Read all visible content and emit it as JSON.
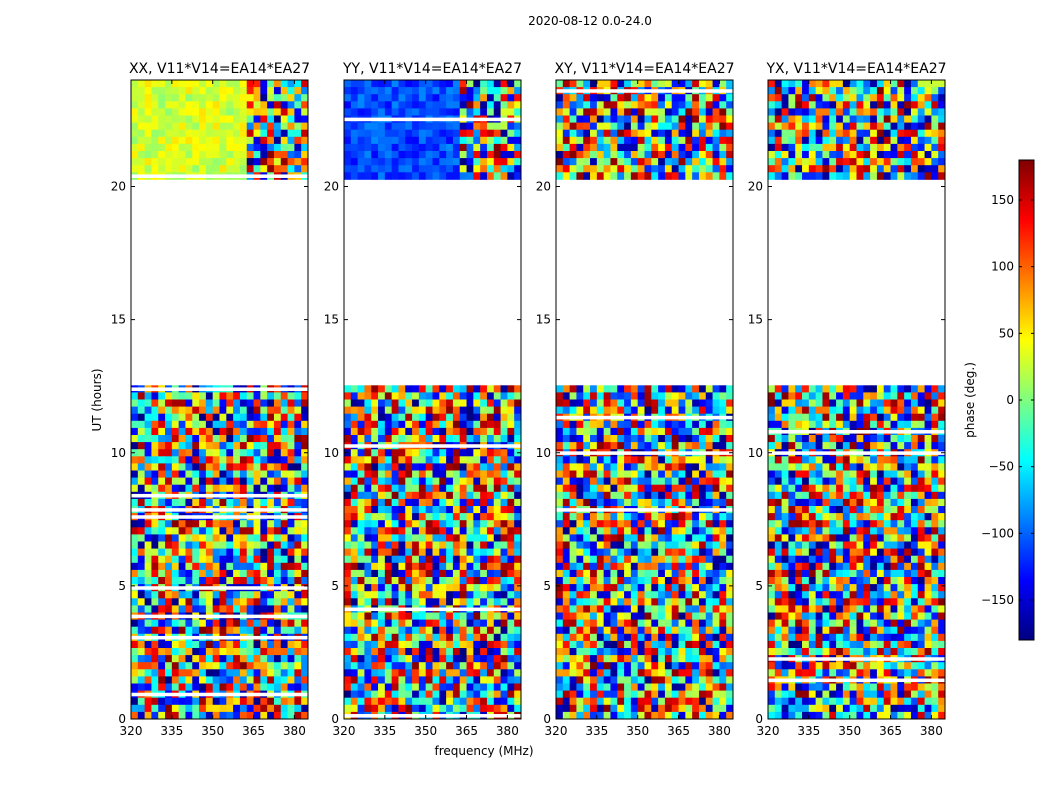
{
  "figure": {
    "suptitle": "2020-08-12 0.0-24.0",
    "xlabel": "frequency (MHz)",
    "ylabel": "UT (hours)"
  },
  "colorbar": {
    "label": "phase (deg.)",
    "range": [
      -180,
      180
    ],
    "ticks": [
      -150,
      -100,
      -50,
      0,
      50,
      100,
      150
    ],
    "tick_labels": [
      "−150",
      "−100",
      "−50",
      "0",
      "50",
      "100",
      "150"
    ],
    "colormap": [
      "#00007f",
      "#0000ff",
      "#007fff",
      "#00ffff",
      "#7fff7f",
      "#ffff00",
      "#ff7f00",
      "#ff0000",
      "#7f0000"
    ]
  },
  "chart_data": [
    {
      "type": "heatmap",
      "title": "XX, V11*V14=EA14*EA27",
      "xlabel": "",
      "ylabel": "UT (hours)",
      "xlim": [
        320,
        385
      ],
      "ylim": [
        0,
        24
      ],
      "x_ticks": [
        320,
        335,
        350,
        365,
        380
      ],
      "y_ticks": [
        0,
        5,
        10,
        15,
        20
      ],
      "data_ranges_hours": [
        [
          0,
          12.6
        ],
        [
          20.3,
          24
        ]
      ],
      "dominant_phase_upper_deg": 30
    },
    {
      "type": "heatmap",
      "title": "YY, V11*V14=EA14*EA27",
      "xlabel": "frequency (MHz)",
      "ylabel": "",
      "xlim": [
        320,
        385
      ],
      "ylim": [
        0,
        24
      ],
      "x_ticks": [
        320,
        335,
        350,
        365,
        380
      ],
      "y_ticks": [
        0,
        5,
        10,
        15,
        20
      ],
      "data_ranges_hours": [
        [
          0,
          12.6
        ],
        [
          20.3,
          24
        ]
      ],
      "dominant_phase_upper_deg": -110
    },
    {
      "type": "heatmap",
      "title": "XY, V11*V14=EA14*EA27",
      "xlabel": "",
      "ylabel": "",
      "xlim": [
        320,
        385
      ],
      "ylim": [
        0,
        24
      ],
      "x_ticks": [
        320,
        335,
        350,
        365,
        380
      ],
      "y_ticks": [
        0,
        5,
        10,
        15,
        20
      ],
      "data_ranges_hours": [
        [
          0,
          12.6
        ],
        [
          20.3,
          24
        ]
      ],
      "dominant_phase_upper_deg": null
    },
    {
      "type": "heatmap",
      "title": "YX, V11*V14=EA14*EA27",
      "xlabel": "",
      "ylabel": "",
      "xlim": [
        320,
        385
      ],
      "ylim": [
        0,
        24
      ],
      "x_ticks": [
        320,
        335,
        350,
        365,
        380
      ],
      "y_ticks": [
        0,
        5,
        10,
        15,
        20
      ],
      "data_ranges_hours": [
        [
          0,
          12.6
        ],
        [
          20.3,
          24
        ]
      ],
      "dominant_phase_upper_deg": null
    }
  ]
}
